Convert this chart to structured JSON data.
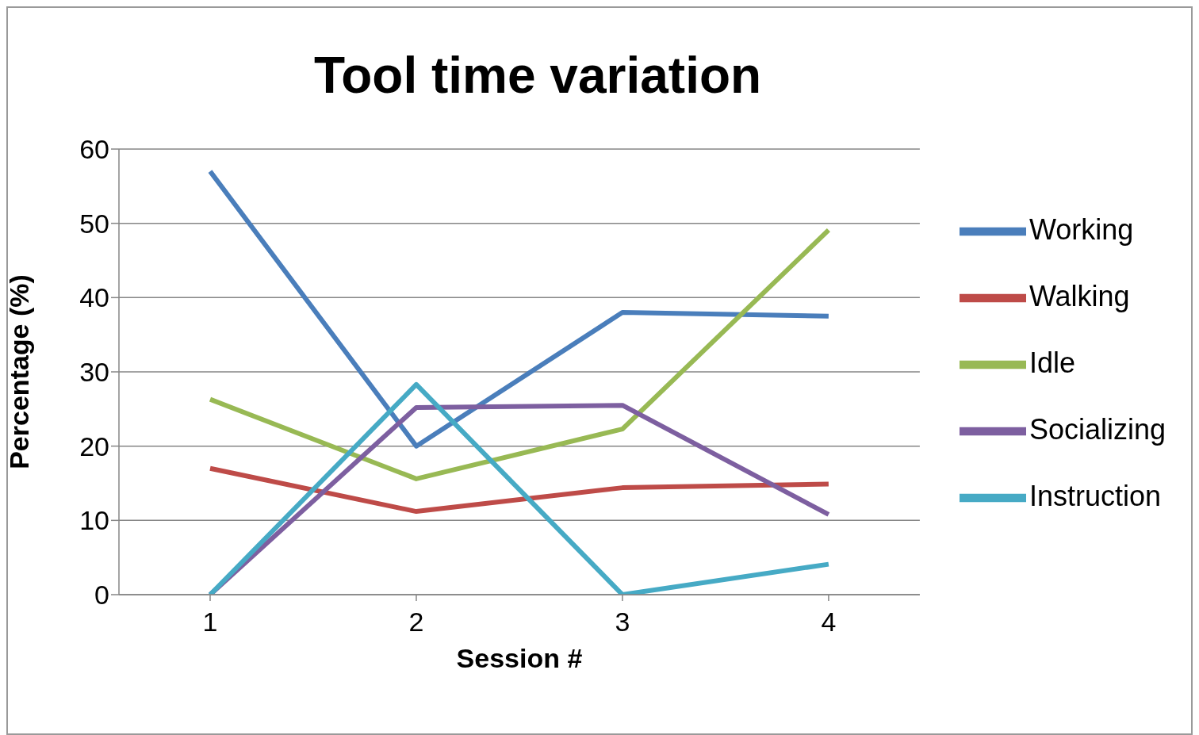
{
  "chart_data": {
    "type": "line",
    "title": "Tool time variation",
    "xlabel": "Session #",
    "ylabel": "Percentage (%)",
    "categories": [
      "1",
      "2",
      "3",
      "4"
    ],
    "series": [
      {
        "name": "Working",
        "color": "#4a7ebb",
        "values": [
          57,
          20,
          38,
          37.5
        ]
      },
      {
        "name": "Walking",
        "color": "#be4b48",
        "values": [
          17,
          11.2,
          14.4,
          14.9
        ]
      },
      {
        "name": "Idle",
        "color": "#98b954",
        "values": [
          26.3,
          15.6,
          22.3,
          49.1
        ]
      },
      {
        "name": "Socializing",
        "color": "#7d5fa0",
        "values": [
          0,
          25.2,
          25.5,
          10.8
        ]
      },
      {
        "name": "Instruction",
        "color": "#46aac5",
        "values": [
          0,
          28.3,
          0,
          4.1
        ]
      }
    ],
    "ylim": [
      0,
      60
    ],
    "yticks": [
      0,
      10,
      20,
      30,
      40,
      50,
      60
    ],
    "grid": "y",
    "legend": "right",
    "marker": "none",
    "line_style": "solid"
  }
}
